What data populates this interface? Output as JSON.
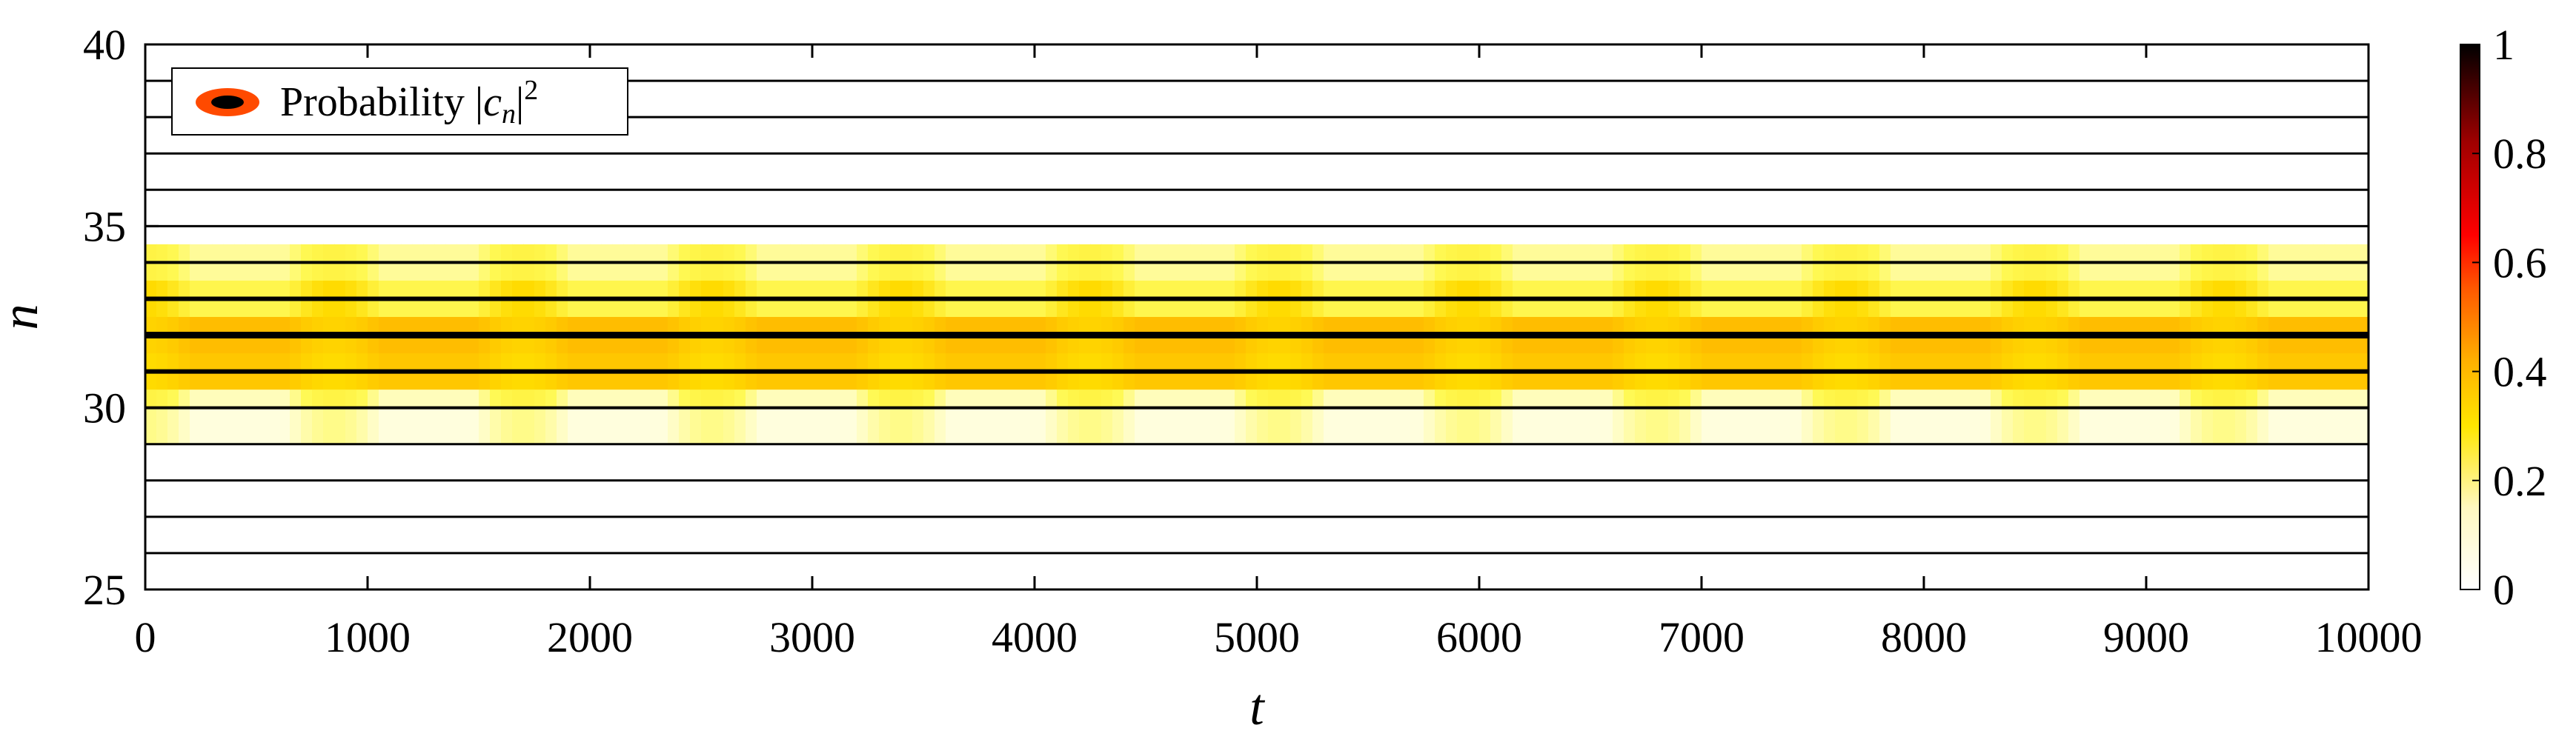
{
  "chart_data": {
    "type": "heatmap",
    "title": "",
    "xlabel": "t",
    "ylabel": "n",
    "xlim": [
      0,
      10000
    ],
    "ylim": [
      25,
      40
    ],
    "x_ticks": [
      0,
      1000,
      2000,
      3000,
      4000,
      5000,
      6000,
      7000,
      8000,
      9000,
      10000
    ],
    "y_ticks": [
      25,
      30,
      35,
      40
    ],
    "legend": {
      "label_prefix": "Probability ",
      "label_var": "c",
      "label_sub": "n",
      "label_sup": "2",
      "placement": "top-left"
    },
    "colorbar": {
      "ticks": [
        "0",
        "0.2",
        "0.4",
        "0.6",
        "0.8",
        "1"
      ],
      "range": [
        0,
        1
      ],
      "colormap": [
        "#ffffff",
        "#fff8c0",
        "#ffe600",
        "#ffb000",
        "#ff5a00",
        "#ff0000",
        "#a00000",
        "#000000"
      ]
    },
    "levels": [
      26,
      27,
      28,
      29,
      30,
      31,
      32,
      33,
      34,
      35,
      36,
      37,
      38,
      39,
      40
    ],
    "oscillation": {
      "period": 850,
      "core_levels": [
        31,
        32,
        33
      ],
      "outer_levels": [
        30,
        34
      ],
      "outer_probability_max": 0.2,
      "core_probability_max": 0.45
    }
  }
}
